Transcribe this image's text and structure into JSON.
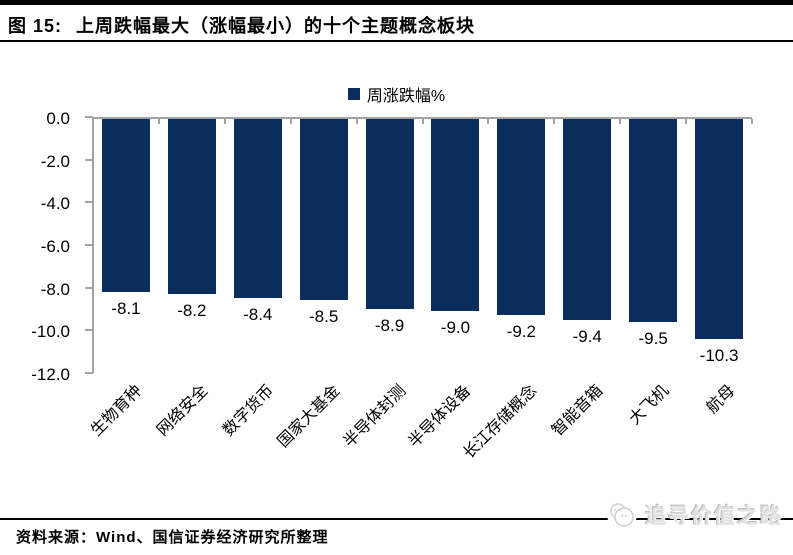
{
  "figure_header": {
    "label": "图 15:",
    "title": "上周跌幅最大（涨幅最小）的十个主题概念板块"
  },
  "chart_data": {
    "type": "bar",
    "title": "",
    "legend": [
      {
        "label": "周涨跌幅%"
      }
    ],
    "legend_position": "top-center",
    "categories": [
      "生物育种",
      "网络安全",
      "数字货币",
      "国家大基金",
      "半导体封测",
      "半导体设备",
      "长江存储概念",
      "智能音箱",
      "大飞机",
      "航母"
    ],
    "series": [
      {
        "name": "周涨跌幅%",
        "values": [
          -8.1,
          -8.2,
          -8.4,
          -8.5,
          -8.9,
          -9.0,
          -9.2,
          -9.4,
          -9.5,
          -10.3
        ]
      }
    ],
    "data_labels": [
      "-8.1",
      "-8.2",
      "-8.4",
      "-8.5",
      "-8.9",
      "-9.0",
      "-9.2",
      "-9.4",
      "-9.5",
      "-10.3"
    ],
    "xlabel": "",
    "ylabel": "",
    "ylim": [
      -12.0,
      0.0
    ],
    "ytick_step": 2.0,
    "yticks": [
      "0.0",
      "-2.0",
      "-4.0",
      "-6.0",
      "-8.0",
      "-10.0",
      "-12.0"
    ],
    "grid": false,
    "bar_color": "#0B2D5B",
    "axis_color": "#a3a3a3"
  },
  "footer": {
    "source": "资料来源：Wind、国信证券经济研究所整理"
  },
  "watermark": {
    "text": "追寻价值之路",
    "logo": "mascot-logo"
  }
}
